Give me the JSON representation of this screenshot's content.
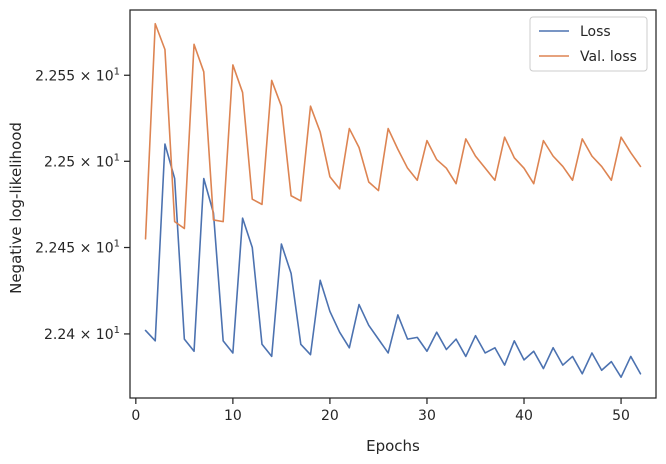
{
  "chart_data": {
    "type": "line",
    "title": "",
    "xlabel": "Epochs",
    "ylabel": "Negative log-likelihood",
    "xlim": [
      -0.6,
      53.6
    ],
    "ylim": [
      22.363,
      22.588
    ],
    "x_ticks": [
      0,
      10,
      20,
      30,
      40,
      50
    ],
    "y_ticks": [
      {
        "value": 22.4,
        "mantissa": "2.24"
      },
      {
        "value": 22.45,
        "mantissa": "2.245"
      },
      {
        "value": 22.5,
        "mantissa": "2.25"
      },
      {
        "value": 22.55,
        "mantissa": "2.255"
      }
    ],
    "y_tick_base": "10",
    "y_tick_exponent": "1",
    "y_scale": "log",
    "grid": false,
    "legend_position": "top-right",
    "x": [
      1,
      2,
      3,
      4,
      5,
      6,
      7,
      8,
      9,
      10,
      11,
      12,
      13,
      14,
      15,
      16,
      17,
      18,
      19,
      20,
      21,
      22,
      23,
      24,
      25,
      26,
      27,
      28,
      29,
      30,
      31,
      32,
      33,
      34,
      35,
      36,
      37,
      38,
      39,
      40,
      41,
      42,
      43,
      44,
      45,
      46,
      47,
      48,
      49,
      50,
      51,
      52
    ],
    "series": [
      {
        "name": "Loss",
        "color": "#4c72b0",
        "values": [
          22.402,
          22.396,
          22.51,
          22.49,
          22.397,
          22.39,
          22.49,
          22.47,
          22.396,
          22.389,
          22.467,
          22.45,
          22.394,
          22.387,
          22.452,
          22.435,
          22.394,
          22.388,
          22.431,
          22.413,
          22.401,
          22.392,
          22.417,
          22.405,
          22.397,
          22.389,
          22.411,
          22.397,
          22.398,
          22.39,
          22.401,
          22.391,
          22.397,
          22.387,
          22.399,
          22.389,
          22.392,
          22.382,
          22.396,
          22.385,
          22.39,
          22.38,
          22.392,
          22.382,
          22.387,
          22.377,
          22.389,
          22.379,
          22.384,
          22.375,
          22.387,
          22.377
        ]
      },
      {
        "name": "Val. loss",
        "color": "#dd8452",
        "values": [
          22.455,
          22.58,
          22.565,
          22.465,
          22.461,
          22.568,
          22.552,
          22.466,
          22.465,
          22.556,
          22.54,
          22.478,
          22.475,
          22.547,
          22.532,
          22.48,
          22.477,
          22.532,
          22.517,
          22.491,
          22.484,
          22.519,
          22.508,
          22.488,
          22.483,
          22.519,
          22.507,
          22.496,
          22.489,
          22.512,
          22.501,
          22.496,
          22.487,
          22.513,
          22.503,
          22.496,
          22.489,
          22.514,
          22.502,
          22.496,
          22.487,
          22.512,
          22.503,
          22.497,
          22.489,
          22.513,
          22.503,
          22.497,
          22.489,
          22.514,
          22.505,
          22.497
        ]
      }
    ]
  }
}
